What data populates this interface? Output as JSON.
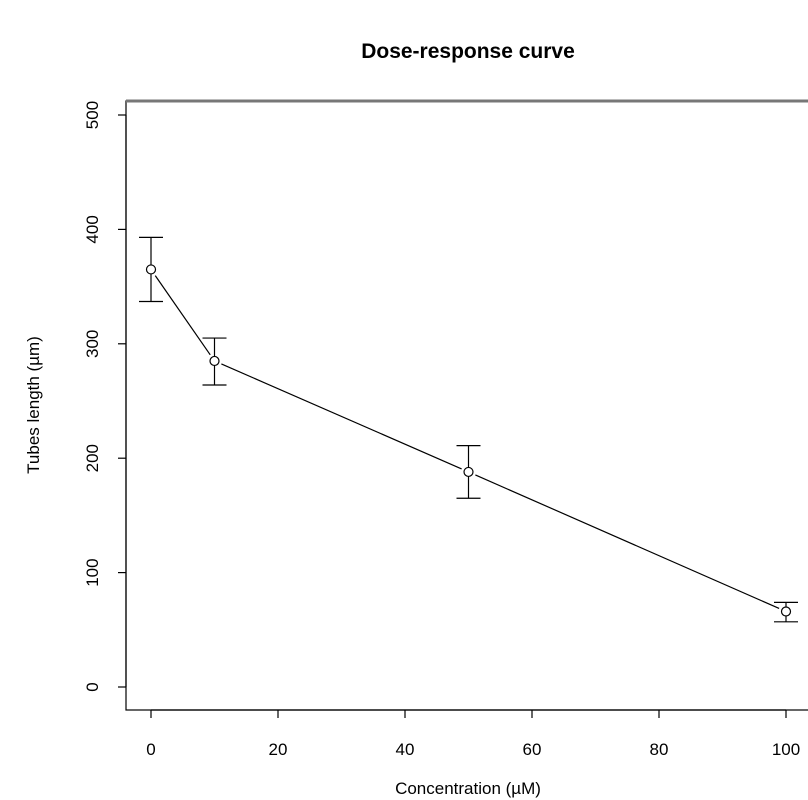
{
  "chart_data": {
    "type": "scatter",
    "title": "Dose-response curve",
    "xlabel": "Concentration (µM)",
    "ylabel": "Tubes length (µm)",
    "xlim": [
      -4,
      104
    ],
    "ylim": [
      -20,
      510
    ],
    "x_ticks": [
      0,
      20,
      40,
      60,
      80,
      100
    ],
    "y_ticks": [
      0,
      100,
      200,
      300,
      400,
      500
    ],
    "grid": false,
    "series": [
      {
        "x": [
          0,
          10,
          50,
          100
        ],
        "y": [
          365,
          285,
          188,
          66
        ],
        "error_low": [
          337,
          264,
          165,
          57
        ],
        "error_high": [
          393,
          305,
          211,
          74
        ],
        "marker": "open-circle",
        "line": true,
        "color": "#000000"
      }
    ]
  }
}
